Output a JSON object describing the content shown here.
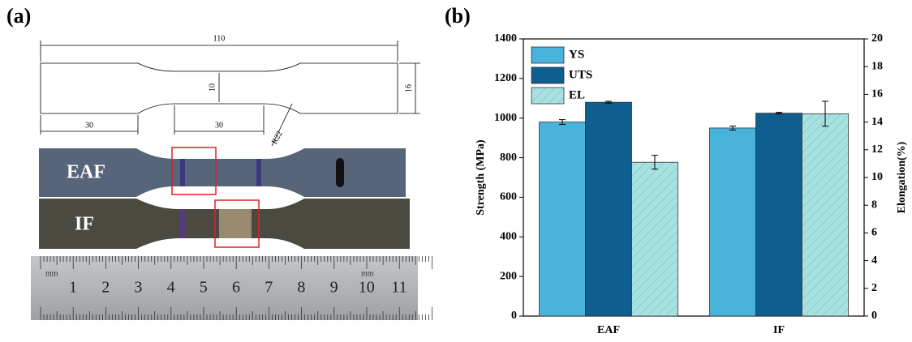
{
  "panel_a": {
    "label": "(a)",
    "dimensions": {
      "length": "110",
      "gauge_width": "10",
      "grip_width": "16",
      "grip_length": "30",
      "gauge_length": "30",
      "radius": "R22"
    },
    "samples": [
      "EAF",
      "IF"
    ],
    "ruler": {
      "numbers": [
        "1",
        "2",
        "3",
        "4",
        "5",
        "6",
        "7",
        "8",
        "9",
        "10",
        "11"
      ],
      "unit": "mm"
    }
  },
  "chart_data": {
    "type": "bar",
    "panel_label": "(b)",
    "ylabel": "Strength (MPa)",
    "y2label": "Elongation(%)",
    "categories": [
      "EAF",
      "IF"
    ],
    "series": [
      {
        "name": "YS",
        "color": "#4ab3db",
        "values": [
          980,
          950
        ],
        "errors": [
          12,
          10
        ]
      },
      {
        "name": "UTS",
        "color": "#0e5f8f",
        "values": [
          1080,
          1025
        ],
        "errors": [
          5,
          4
        ]
      },
      {
        "name": "EL",
        "color": "#a8e1e1",
        "hatch": true,
        "axis": "y2",
        "values": [
          11.1,
          14.6
        ],
        "errors": [
          0.5,
          0.9
        ]
      }
    ],
    "ylim": [
      0,
      1400
    ],
    "yticks": [
      0,
      200,
      400,
      600,
      800,
      1000,
      1200,
      1400
    ],
    "y2lim": [
      0,
      20
    ],
    "y2ticks": [
      0,
      2,
      4,
      6,
      8,
      10,
      12,
      14,
      16,
      18,
      20
    ],
    "legend": "upper left"
  }
}
